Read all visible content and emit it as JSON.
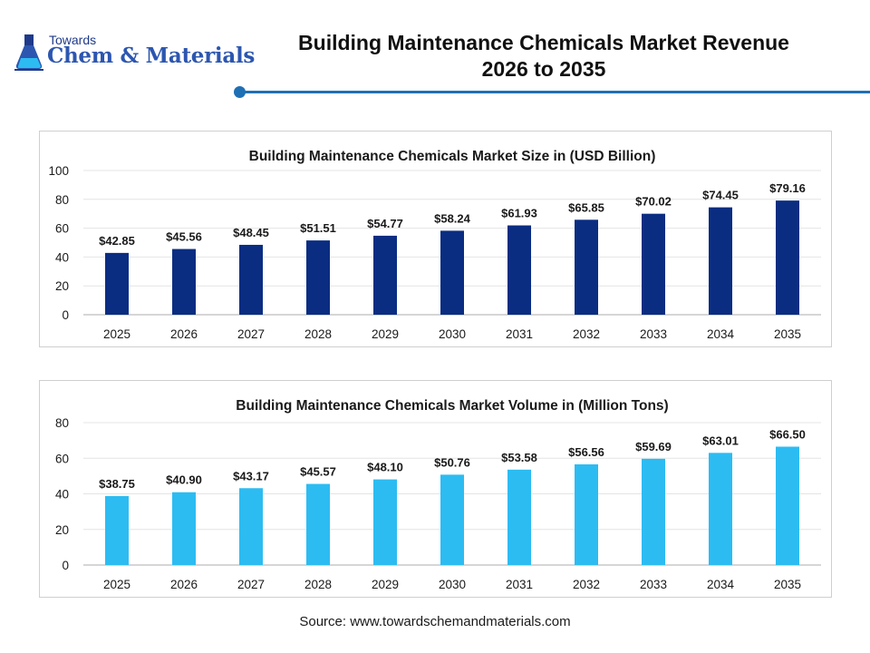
{
  "logo": {
    "small_text": "Towards",
    "big_text": "Chem & Materials"
  },
  "header": {
    "title_line1": "Building Maintenance Chemicals Market Revenue",
    "title_line2": "2026 to 2035"
  },
  "source": "Source: www.towardschemandmaterials.com",
  "colors": {
    "accent": "#1f6fb5",
    "series_revenue": "#0a2d82",
    "series_volume": "#2cbcf2"
  },
  "chart_data": [
    {
      "type": "bar",
      "title": "Building Maintenance Chemicals Market Size in (USD Billion)",
      "xlabel": "",
      "ylabel": "",
      "categories": [
        "2025",
        "2026",
        "2027",
        "2028",
        "2029",
        "2030",
        "2031",
        "2032",
        "2033",
        "2034",
        "2035"
      ],
      "values": [
        42.85,
        45.56,
        48.45,
        51.51,
        54.77,
        58.24,
        61.93,
        65.85,
        70.02,
        74.45,
        79.16
      ],
      "labels": [
        "$42.85",
        "$45.56",
        "$48.45",
        "$51.51",
        "$54.77",
        "$58.24",
        "$61.93",
        "$65.85",
        "$70.02",
        "$74.45",
        "$79.16"
      ],
      "ylim": [
        0,
        100
      ],
      "yticks": [
        "0",
        "20",
        "40",
        "60",
        "80",
        "100"
      ],
      "grid": true,
      "legend": "none",
      "color": "#0a2d82"
    },
    {
      "type": "bar",
      "title": "Building Maintenance Chemicals Market Volume in (Million Tons)",
      "xlabel": "",
      "ylabel": "",
      "categories": [
        "2025",
        "2026",
        "2027",
        "2028",
        "2029",
        "2030",
        "2031",
        "2032",
        "2033",
        "2034",
        "2035"
      ],
      "values": [
        38.75,
        40.9,
        43.17,
        45.57,
        48.1,
        50.76,
        53.58,
        56.56,
        59.69,
        63.01,
        66.5
      ],
      "labels": [
        "$38.75",
        "$40.90",
        "$43.17",
        "$45.57",
        "$48.10",
        "$50.76",
        "$53.58",
        "$56.56",
        "$59.69",
        "$63.01",
        "$66.50"
      ],
      "ylim": [
        0,
        80
      ],
      "yticks": [
        "0",
        "20",
        "40",
        "60",
        "80"
      ],
      "grid": true,
      "legend": "none",
      "color": "#2cbcf2"
    }
  ]
}
